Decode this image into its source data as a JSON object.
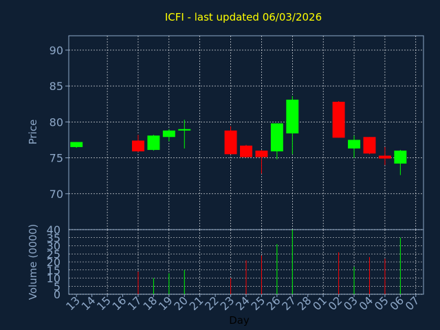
{
  "chart_data": {
    "type": "candlestick",
    "title": "ICFI - last updated 06/03/2026",
    "ylabel": "Price",
    "volume_label": "Volume (0000)",
    "xlabel": "Day",
    "ylim": [
      65,
      92
    ],
    "yticks": [
      70,
      75,
      80,
      85,
      90
    ],
    "vol_ylim": [
      0,
      40
    ],
    "vol_yticks": [
      0,
      5,
      10,
      15,
      20,
      25,
      30,
      35,
      40
    ],
    "grid": true,
    "x_labels": [
      "13",
      "14",
      "15",
      "16",
      "17",
      "18",
      "19",
      "20",
      "21",
      "22",
      "23",
      "24",
      "25",
      "26",
      "27",
      "28",
      "01",
      "02",
      "03",
      "04",
      "05",
      "06",
      "07"
    ],
    "candles": [
      {
        "x": "13",
        "open": 76.5,
        "high": 77.2,
        "low": 76.4,
        "close": 77.2,
        "volume": 0
      },
      {
        "x": "17",
        "open": 77.4,
        "high": 78.2,
        "low": 75.8,
        "close": 75.9,
        "volume": 14
      },
      {
        "x": "18",
        "open": 76.1,
        "high": 78.2,
        "low": 76.0,
        "close": 78.1,
        "volume": 10
      },
      {
        "x": "19",
        "open": 77.9,
        "high": 79.0,
        "low": 77.3,
        "close": 78.8,
        "volume": 13
      },
      {
        "x": "20",
        "open": 78.8,
        "high": 80.3,
        "low": 76.3,
        "close": 79.0,
        "volume": 15
      },
      {
        "x": "23",
        "open": 78.8,
        "high": 79.4,
        "low": 75.5,
        "close": 75.5,
        "volume": 10
      },
      {
        "x": "24",
        "open": 76.7,
        "high": 76.8,
        "low": 75.0,
        "close": 75.1,
        "volume": 21
      },
      {
        "x": "25",
        "open": 76.0,
        "high": 76.1,
        "low": 72.8,
        "close": 75.1,
        "volume": 24
      },
      {
        "x": "26",
        "open": 75.9,
        "high": 79.8,
        "low": 74.8,
        "close": 79.8,
        "volume": 31
      },
      {
        "x": "27",
        "open": 78.4,
        "high": 83.6,
        "low": 75.5,
        "close": 83.1,
        "volume": 40
      },
      {
        "x": "02",
        "open": 82.8,
        "high": 82.9,
        "low": 77.8,
        "close": 77.8,
        "volume": 26
      },
      {
        "x": "03",
        "open": 76.3,
        "high": 78.1,
        "low": 75.0,
        "close": 77.5,
        "volume": 17
      },
      {
        "x": "04",
        "open": 77.9,
        "high": 77.9,
        "low": 75.5,
        "close": 75.6,
        "volume": 23
      },
      {
        "x": "05",
        "open": 75.3,
        "high": 76.5,
        "low": 74.0,
        "close": 74.9,
        "volume": 22
      },
      {
        "x": "06",
        "open": 74.2,
        "high": 76.1,
        "low": 72.6,
        "close": 76.0,
        "volume": 35
      }
    ]
  },
  "colors": {
    "background": "#0f1f33",
    "axis_text": "#8ea8c8",
    "title": "#ffff00",
    "up": "#00ff00",
    "down": "#ff0000",
    "grid": "#ffffff",
    "label": "#000000"
  }
}
